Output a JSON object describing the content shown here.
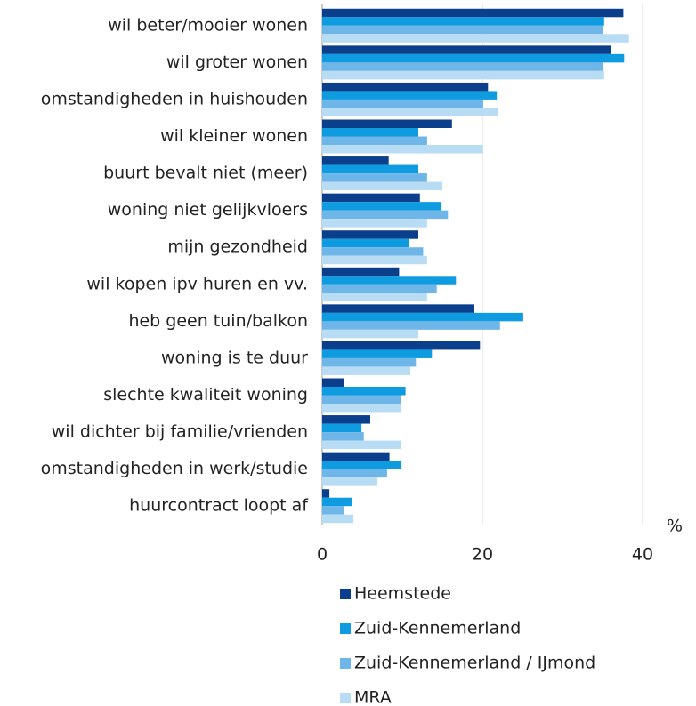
{
  "chart_data": {
    "type": "barh",
    "categories": [
      "wil beter/mooier wonen",
      "wil groter wonen",
      "omstandigheden in huishouden",
      "wil kleiner wonen",
      "buurt bevalt niet (meer)",
      "woning niet gelijkvloers",
      "mijn gezondheid",
      "wil kopen ipv huren en vv.",
      "heb geen tuin/balkon",
      "woning is te duur",
      "slechte kwaliteit woning",
      "wil dichter bij familie/vrienden",
      "omstandigheden in werk/studie",
      "huurcontract loopt af"
    ],
    "series": [
      {
        "name": "Heemstede",
        "color": "#0b3f8c",
        "values": [
          37.6,
          36.1,
          20.7,
          16.2,
          8.3,
          12.2,
          12,
          9.6,
          19,
          19.7,
          2.7,
          6,
          8.4,
          0.9
        ]
      },
      {
        "name": "Zuid-Kennemerland",
        "color": "#0e9be0",
        "values": [
          35.2,
          37.7,
          21.8,
          12,
          12,
          14.9,
          10.8,
          16.7,
          25.1,
          13.7,
          10.4,
          4.9,
          9.9,
          3.7
        ]
      },
      {
        "name": "Zuid-Kennemerland / IJmond",
        "color": "#6fb6e8",
        "values": [
          35.1,
          35,
          20.1,
          13.1,
          13.1,
          15.7,
          12.6,
          14.3,
          22.2,
          11.7,
          9.8,
          5.2,
          8.1,
          2.7
        ]
      },
      {
        "name": "MRA",
        "color": "#b8dcf4",
        "values": [
          38.3,
          35.2,
          22,
          20.1,
          15,
          13.1,
          13.1,
          13.1,
          12,
          11,
          9.9,
          9.9,
          6.9,
          3.9
        ]
      }
    ],
    "xlabel": "%",
    "xlim": [
      0,
      40
    ],
    "xticks": [
      0,
      20,
      40
    ],
    "grid": true,
    "legend": "bottom"
  }
}
